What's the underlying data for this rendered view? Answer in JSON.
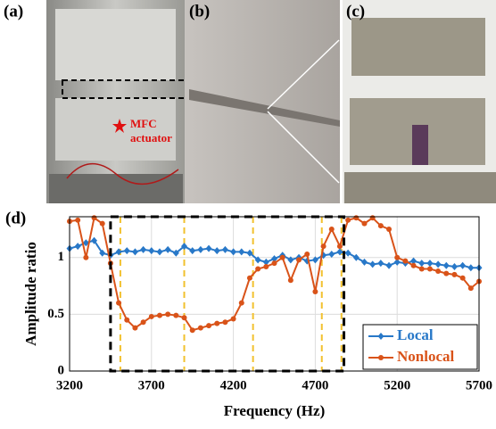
{
  "panel_labels": [
    "(a)",
    "(b)",
    "(c)",
    "(d)"
  ],
  "annotation": [
    "MFC",
    "actuator"
  ],
  "chart_data": {
    "type": "line",
    "xlabel": "Frequency (Hz)",
    "ylabel": "Amplitude ratio",
    "x": [
      3200,
      3250,
      3300,
      3350,
      3400,
      3450,
      3500,
      3550,
      3600,
      3650,
      3700,
      3750,
      3800,
      3850,
      3900,
      3950,
      4000,
      4050,
      4100,
      4150,
      4200,
      4250,
      4300,
      4350,
      4400,
      4450,
      4500,
      4550,
      4600,
      4650,
      4700,
      4750,
      4800,
      4850,
      4900,
      4950,
      5000,
      5050,
      5100,
      5150,
      5200,
      5250,
      5300,
      5350,
      5400,
      5450,
      5500,
      5550,
      5600,
      5650,
      5700
    ],
    "series": [
      {
        "name": "Local",
        "color": "#2878c8",
        "marker": "diamond",
        "values": [
          1.08,
          1.1,
          1.13,
          1.15,
          1.04,
          1.02,
          1.05,
          1.06,
          1.05,
          1.07,
          1.06,
          1.05,
          1.07,
          1.04,
          1.1,
          1.06,
          1.07,
          1.08,
          1.06,
          1.07,
          1.05,
          1.05,
          1.04,
          0.98,
          0.96,
          0.99,
          1.02,
          0.98,
          1.0,
          0.97,
          0.98,
          1.02,
          1.03,
          1.05,
          1.04,
          1.0,
          0.96,
          0.94,
          0.95,
          0.93,
          0.96,
          0.95,
          0.97,
          0.95,
          0.95,
          0.94,
          0.93,
          0.92,
          0.93,
          0.91,
          0.91
        ]
      },
      {
        "name": "Nonlocal",
        "color": "#d95319",
        "marker": "circle",
        "values": [
          1.32,
          1.33,
          1.0,
          1.35,
          1.3,
          0.95,
          0.6,
          0.45,
          0.38,
          0.43,
          0.48,
          0.49,
          0.5,
          0.49,
          0.47,
          0.36,
          0.38,
          0.4,
          0.42,
          0.43,
          0.46,
          0.6,
          0.82,
          0.9,
          0.92,
          0.95,
          1.0,
          0.8,
          0.98,
          1.03,
          0.7,
          1.1,
          1.25,
          1.1,
          1.33,
          1.35,
          1.3,
          1.35,
          1.28,
          1.25,
          1.0,
          0.97,
          0.93,
          0.9,
          0.9,
          0.88,
          0.86,
          0.85,
          0.82,
          0.73,
          0.79
        ]
      }
    ],
    "xlim": [
      3200,
      5700
    ],
    "xticks": [
      3200,
      3700,
      4200,
      4700,
      5200,
      5700
    ],
    "ylim": [
      0,
      1.36
    ],
    "yticks": [
      0,
      0.5,
      1
    ],
    "grid": true,
    "legend": "lower right",
    "vlines": [
      3510,
      3900,
      4320,
      4740,
      4860
    ],
    "vline_color": "#f2c12e",
    "box_x": [
      3450,
      4875
    ]
  }
}
